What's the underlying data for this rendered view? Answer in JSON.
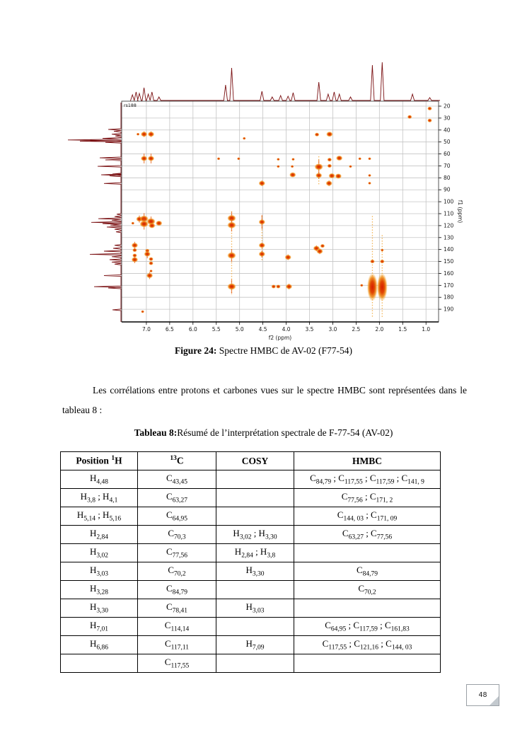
{
  "page": {
    "number": "48"
  },
  "figure": {
    "caption_bold": "Figure 24:",
    "caption_rest": " Spectre HMBC de AV-02 (F77-54)"
  },
  "paragraph": {
    "text": "Les corrélations entre protons et carbones vues sur le spectre HMBC sont représentées dans le tableau 8 :"
  },
  "table": {
    "title_bold": "Tableau 8:",
    "title_rest": "Résumé de l’interprétation spectrale de F-77-54 (AV-02)",
    "headers": [
      "Position ^{1}H",
      "^{13}C",
      "COSY",
      "HMBC"
    ],
    "rows": [
      [
        "H_{4,48}",
        "C_{43,45}",
        "",
        "C_{84,79} ; C_{117,55} ; C_{117,59} ; C_{141, 9}"
      ],
      [
        "H_{3,8} ; H_{4,1}",
        "C_{63,27}",
        "",
        "C_{77,56} ; C_{171, 2}"
      ],
      [
        "H_{5,14} ; H_{5,16}",
        "C_{64,95}",
        "",
        "C_{144, 03} ; C_{171, 09}"
      ],
      [
        "H_{2,84}",
        "C_{70,3}",
        "H_{3,02} ; H_{3,30}",
        "C_{63,27} ; C_{77,56}"
      ],
      [
        "H_{3,02}",
        "C_{77,56}",
        "H_{2,84} ; H_{3,8}",
        ""
      ],
      [
        "H_{3,03}",
        "C_{70,2}",
        "H_{3,30}",
        "C_{84,79}"
      ],
      [
        "H_{3,28}",
        "C_{84,79}",
        "",
        "C_{70,2}"
      ],
      [
        "H_{3,30}",
        "C_{78,41}",
        "H_{3,03}",
        ""
      ],
      [
        "H_{7,01}",
        "C_{114,14}",
        "",
        "C_{64,95} ; C_{117,59} ; C_{161,83}"
      ],
      [
        "H_{6,86}",
        "C_{117,11}",
        "H_{7,09}",
        "C_{117,55} ; C_{121,16} ; C_{144, 03}"
      ],
      [
        "",
        "C_{117,55}",
        "",
        ""
      ]
    ]
  },
  "chart_data": {
    "type": "heatmap",
    "title": "Spectre HMBC de AV-02 (F77-54)",
    "label": "rs188",
    "xlabel": "f2 (ppm)",
    "ylabel": "f1 (ppm)",
    "xlim": [
      7.53,
      0.73
    ],
    "ylim": [
      15.85,
      200.6
    ],
    "x_ticks": [
      "7.0",
      "6.5",
      "6.0",
      "5.5",
      "5.0",
      "4.5",
      "4.0",
      "3.5",
      "3.0",
      "2.5",
      "2.0",
      "1.5",
      "1.0"
    ],
    "y_ticks": [
      "20",
      "30",
      "40",
      "50",
      "60",
      "70",
      "80",
      "90",
      "100",
      "110",
      "120",
      "130",
      "140",
      "150",
      "160",
      "170",
      "180",
      "190"
    ],
    "grid": true,
    "peaks": [
      [
        0.92,
        22,
        2,
        0
      ],
      [
        1.35,
        29,
        2,
        0
      ],
      [
        0.92,
        32,
        2,
        0
      ],
      [
        7.18,
        43.5,
        1,
        0
      ],
      [
        7.05,
        43.5,
        3,
        4
      ],
      [
        6.9,
        43.5,
        3,
        4
      ],
      [
        3.34,
        43.8,
        2,
        0
      ],
      [
        3.07,
        43.5,
        3,
        0
      ],
      [
        4.9,
        47,
        1,
        0
      ],
      [
        7.05,
        63.8,
        3,
        7
      ],
      [
        6.9,
        63.8,
        3,
        7
      ],
      [
        5.45,
        64,
        1,
        0
      ],
      [
        5.02,
        64,
        1,
        0
      ],
      [
        4.17,
        64.5,
        1,
        0
      ],
      [
        3.85,
        64.5,
        1,
        0
      ],
      [
        3.07,
        64.8,
        2,
        0
      ],
      [
        2.86,
        63.5,
        3,
        0
      ],
      [
        2.42,
        64,
        1,
        0
      ],
      [
        2.21,
        64,
        1,
        0
      ],
      [
        4.17,
        70.5,
        1,
        0
      ],
      [
        3.87,
        70.5,
        1,
        0
      ],
      [
        3.3,
        70.8,
        4,
        10
      ],
      [
        3.07,
        70,
        2,
        0
      ],
      [
        2.62,
        70.5,
        1,
        0
      ],
      [
        3.86,
        77.5,
        3,
        0
      ],
      [
        3.3,
        78,
        3,
        5
      ],
      [
        3.02,
        78.3,
        3,
        0
      ],
      [
        2.88,
        78.6,
        3,
        0
      ],
      [
        2.21,
        78,
        1,
        0
      ],
      [
        4.52,
        84.6,
        3,
        4
      ],
      [
        3.08,
        84.6,
        3,
        4
      ],
      [
        2.21,
        84.5,
        1,
        0
      ],
      [
        7.29,
        118,
        1,
        0
      ],
      [
        7.15,
        114.5,
        3,
        5
      ],
      [
        7.05,
        114.3,
        4,
        8
      ],
      [
        7.05,
        118.6,
        4,
        8
      ],
      [
        6.9,
        116.5,
        4,
        7
      ],
      [
        6.88,
        120,
        3,
        0
      ],
      [
        6.73,
        118,
        3,
        0
      ],
      [
        5.17,
        113.8,
        4,
        9
      ],
      [
        5.17,
        119.6,
        4,
        9
      ],
      [
        4.52,
        117,
        3,
        10
      ],
      [
        7.25,
        136.5,
        3,
        5
      ],
      [
        7.25,
        140.5,
        2,
        0
      ],
      [
        7.25,
        145,
        2,
        0
      ],
      [
        7.25,
        148.5,
        3,
        5
      ],
      [
        6.98,
        141,
        2,
        0
      ],
      [
        6.98,
        143.8,
        3,
        6
      ],
      [
        6.9,
        148,
        2,
        0
      ],
      [
        6.9,
        151.5,
        2,
        0
      ],
      [
        5.17,
        145,
        4,
        9
      ],
      [
        4.52,
        136.5,
        3,
        4
      ],
      [
        4.52,
        143.8,
        3,
        5
      ],
      [
        3.96,
        146.5,
        3,
        4
      ],
      [
        3.35,
        139,
        3,
        4
      ],
      [
        3.28,
        141.5,
        3,
        4
      ],
      [
        3.22,
        137,
        2,
        0
      ],
      [
        6.93,
        161.8,
        3,
        5
      ],
      [
        6.9,
        158,
        1,
        0
      ],
      [
        5.17,
        171,
        4,
        10
      ],
      [
        4.27,
        171,
        2,
        0
      ],
      [
        4.17,
        171,
        2,
        0
      ],
      [
        3.94,
        171,
        3,
        4
      ],
      [
        2.38,
        170,
        1,
        0
      ],
      [
        2.15,
        150,
        2,
        0
      ],
      [
        1.94,
        150,
        2,
        0
      ],
      [
        1.94,
        140.5,
        1,
        0
      ],
      [
        2.15,
        171.5,
        5,
        0
      ],
      [
        1.94,
        171.5,
        5,
        0
      ],
      [
        7.08,
        192,
        1,
        0
      ]
    ],
    "column_streaks": [
      [
        5.17,
        108,
        178
      ],
      [
        4.52,
        112,
        150
      ],
      [
        3.3,
        62,
        86
      ],
      [
        2.15,
        112,
        197
      ],
      [
        1.94,
        128,
        197
      ]
    ],
    "projections": {
      "top_1h_peaks": [
        [
          7.3,
          8
        ],
        [
          7.22,
          12
        ],
        [
          7.15,
          10
        ],
        [
          7.05,
          18
        ],
        [
          6.96,
          9
        ],
        [
          6.88,
          12
        ],
        [
          6.73,
          5
        ],
        [
          5.3,
          22
        ],
        [
          5.17,
          46
        ],
        [
          4.52,
          13
        ],
        [
          4.3,
          5
        ],
        [
          4.12,
          7
        ],
        [
          3.96,
          6
        ],
        [
          3.85,
          11
        ],
        [
          3.3,
          26
        ],
        [
          3.1,
          9
        ],
        [
          2.97,
          12
        ],
        [
          2.86,
          9
        ],
        [
          2.62,
          5
        ],
        [
          2.15,
          50
        ],
        [
          1.94,
          54
        ],
        [
          1.29,
          9
        ],
        [
          0.92,
          4
        ]
      ],
      "left_13c_peaks": [
        [
          39.5,
          18
        ],
        [
          41,
          10
        ],
        [
          43.5,
          13
        ],
        [
          45,
          8
        ],
        [
          47,
          26
        ],
        [
          48.3,
          75
        ],
        [
          49.3,
          58
        ],
        [
          50.3,
          22
        ],
        [
          63.3,
          30
        ],
        [
          65,
          22
        ],
        [
          70.4,
          33
        ],
        [
          76.8,
          12
        ],
        [
          77.5,
          28
        ],
        [
          78.4,
          16
        ],
        [
          84.7,
          24
        ],
        [
          110.5,
          6
        ],
        [
          112.5,
          9
        ],
        [
          114.2,
          32
        ],
        [
          115.5,
          13
        ],
        [
          117.3,
          42
        ],
        [
          118.3,
          26
        ],
        [
          119.6,
          15
        ],
        [
          121.2,
          20
        ],
        [
          123,
          9
        ],
        [
          125.2,
          7
        ],
        [
          136.5,
          9
        ],
        [
          139,
          11
        ],
        [
          141.4,
          24
        ],
        [
          144,
          44
        ],
        [
          146,
          13
        ],
        [
          148.5,
          16
        ],
        [
          150.5,
          13
        ],
        [
          152.2,
          9
        ],
        [
          161.8,
          24
        ],
        [
          171.1,
          38
        ],
        [
          172.2,
          18
        ],
        [
          190.5,
          12
        ]
      ]
    }
  },
  "colors": {
    "peak_core": "#d81e00",
    "peak_mid": "#e8641a",
    "peak_edge": "#f4b544",
    "trace": "#7a1012",
    "grid": "#c4c4c4",
    "streak": "#f2a93b"
  }
}
